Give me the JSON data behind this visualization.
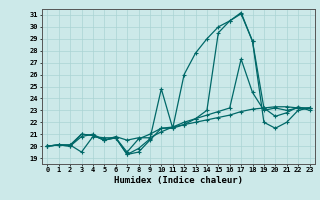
{
  "xlabel": "Humidex (Indice chaleur)",
  "xlim": [
    -0.5,
    23.5
  ],
  "ylim": [
    18.5,
    31.5
  ],
  "yticks": [
    19,
    20,
    21,
    22,
    23,
    24,
    25,
    26,
    27,
    28,
    29,
    30,
    31
  ],
  "xticks": [
    0,
    1,
    2,
    3,
    4,
    5,
    6,
    7,
    8,
    9,
    10,
    11,
    12,
    13,
    14,
    15,
    16,
    17,
    18,
    19,
    20,
    21,
    22,
    23
  ],
  "background_color": "#cce9e9",
  "grid_color": "#aad4d4",
  "line_color": "#006868",
  "lines": [
    [
      20.0,
      20.1,
      20.1,
      19.5,
      20.8,
      20.7,
      20.7,
      19.3,
      19.5,
      20.5,
      21.5,
      21.6,
      21.8,
      22.0,
      22.2,
      22.4,
      22.6,
      22.9,
      23.1,
      23.2,
      23.3,
      23.3,
      23.2,
      23.2
    ],
    [
      20.0,
      20.1,
      20.1,
      21.0,
      20.9,
      20.5,
      20.8,
      20.5,
      20.7,
      20.7,
      21.2,
      21.6,
      22.0,
      22.3,
      22.6,
      22.9,
      23.2,
      27.3,
      24.5,
      23.0,
      23.2,
      23.0,
      23.2,
      23.2
    ],
    [
      20.0,
      20.1,
      20.0,
      20.8,
      21.0,
      20.5,
      20.7,
      19.3,
      19.8,
      20.6,
      24.8,
      21.5,
      26.0,
      27.8,
      29.0,
      30.0,
      30.5,
      31.1,
      28.8,
      22.0,
      21.5,
      22.0,
      23.0,
      23.2
    ],
    [
      20.0,
      20.1,
      20.0,
      21.0,
      20.9,
      20.5,
      20.7,
      19.5,
      20.6,
      21.0,
      21.5,
      21.5,
      21.8,
      22.3,
      23.0,
      29.5,
      30.5,
      31.2,
      28.8,
      23.2,
      22.5,
      22.8,
      23.3,
      23.0
    ]
  ]
}
